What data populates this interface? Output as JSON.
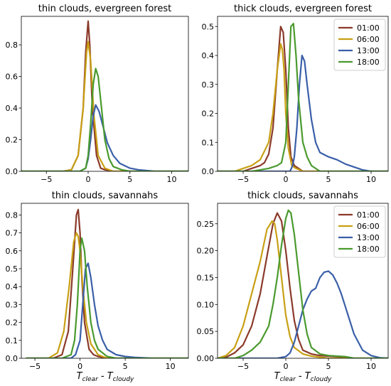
{
  "figure": {
    "x_axis_label": {
      "main": "T",
      "sub1": "clear",
      "mid": " - T",
      "sub2": "cloudy"
    }
  },
  "legend": [
    {
      "label": "01:00",
      "color": "#8b3a2a"
    },
    {
      "label": "06:00",
      "color": "#c8a015"
    },
    {
      "label": "13:00",
      "color": "#3a5fa8"
    },
    {
      "label": "18:00",
      "color": "#4a9a2e"
    }
  ],
  "chart_data": [
    {
      "type": "line",
      "title": "thin clouds, evergreen forest",
      "xlim": [
        -8,
        12
      ],
      "ylim": [
        0,
        0.98
      ],
      "xticks": [
        -5,
        0,
        5,
        10
      ],
      "yticks": [
        0.0,
        0.2,
        0.4,
        0.6,
        0.8
      ],
      "tick_decimals": 1,
      "legend": false,
      "series": [
        {
          "color": "#8b3a2a",
          "x": [
            -8,
            -3,
            -2,
            -1.2,
            -0.6,
            -0.3,
            0,
            0.2,
            0.5,
            1,
            1.5,
            2,
            3,
            12
          ],
          "y": [
            0,
            0,
            0.01,
            0.1,
            0.4,
            0.75,
            0.95,
            0.8,
            0.4,
            0.1,
            0.02,
            0.01,
            0,
            0
          ]
        },
        {
          "color": "#c8a015",
          "x": [
            -8,
            -3,
            -2,
            -1.2,
            -0.6,
            -0.2,
            0,
            0.3,
            0.7,
            1.2,
            2,
            3,
            12
          ],
          "y": [
            0,
            0,
            0.01,
            0.1,
            0.4,
            0.75,
            0.82,
            0.7,
            0.35,
            0.1,
            0.02,
            0,
            0
          ]
        },
        {
          "color": "#3a5fa8",
          "x": [
            -8,
            -1,
            -0.3,
            0,
            0.3,
            0.6,
            0.9,
            1.3,
            1.8,
            2.3,
            3,
            3.8,
            5,
            6,
            8,
            12
          ],
          "y": [
            0,
            0,
            0.02,
            0.08,
            0.2,
            0.35,
            0.42,
            0.38,
            0.28,
            0.18,
            0.1,
            0.05,
            0.02,
            0.01,
            0,
            0
          ]
        },
        {
          "color": "#4a9a2e",
          "x": [
            -8,
            -1,
            -0.3,
            0,
            0.3,
            0.6,
            0.9,
            1.2,
            1.6,
            2,
            2.5,
            3,
            4,
            5,
            12
          ],
          "y": [
            0,
            0,
            0.02,
            0.1,
            0.3,
            0.55,
            0.65,
            0.6,
            0.4,
            0.2,
            0.08,
            0.03,
            0.01,
            0,
            0
          ]
        }
      ]
    },
    {
      "type": "line",
      "title": "thick clouds, evergreen forest",
      "xlim": [
        -8,
        12
      ],
      "ylim": [
        0,
        0.535
      ],
      "xticks": [
        -5,
        0,
        5,
        10
      ],
      "yticks": [
        0.0,
        0.1,
        0.2,
        0.3,
        0.4,
        0.5
      ],
      "tick_decimals": 1,
      "legend": true,
      "series": [
        {
          "name": "01:00",
          "color": "#8b3a2a",
          "x": [
            -8,
            -5,
            -4,
            -3,
            -2.5,
            -2,
            -1.5,
            -1,
            -0.6,
            -0.3,
            0,
            0.3,
            0.6,
            1,
            1.5,
            2,
            3,
            12
          ],
          "y": [
            0,
            0,
            0.01,
            0.02,
            0.03,
            0.06,
            0.15,
            0.35,
            0.5,
            0.48,
            0.35,
            0.15,
            0.05,
            0.02,
            0.01,
            0,
            0,
            0
          ]
        },
        {
          "name": "06:00",
          "color": "#c8a015",
          "x": [
            -8,
            -6,
            -5,
            -4,
            -3,
            -2,
            -1.5,
            -1,
            -0.6,
            -0.4,
            -0.2,
            0,
            0.3,
            0.7,
            1.2,
            2,
            3,
            12
          ],
          "y": [
            0,
            0,
            0.01,
            0.02,
            0.04,
            0.1,
            0.2,
            0.35,
            0.44,
            0.42,
            0.35,
            0.2,
            0.08,
            0.02,
            0.01,
            0,
            0,
            0
          ]
        },
        {
          "name": "13:00",
          "color": "#3a5fa8",
          "x": [
            -8,
            0.5,
            0.8,
            1,
            1.3,
            1.6,
            1.9,
            2.2,
            2.5,
            3,
            3.5,
            4,
            5,
            6,
            7,
            8,
            9,
            10,
            12
          ],
          "y": [
            0,
            0,
            0.02,
            0.05,
            0.15,
            0.3,
            0.4,
            0.38,
            0.3,
            0.18,
            0.1,
            0.065,
            0.05,
            0.04,
            0.025,
            0.015,
            0.005,
            0,
            0
          ]
        },
        {
          "name": "18:00",
          "color": "#4a9a2e",
          "x": [
            -8,
            -4,
            -2,
            -1,
            -0.5,
            0,
            0.3,
            0.6,
            0.9,
            1.2,
            1.5,
            2,
            2.5,
            3,
            4,
            12
          ],
          "y": [
            0,
            0,
            0.01,
            0.02,
            0.03,
            0.1,
            0.3,
            0.5,
            0.51,
            0.4,
            0.25,
            0.1,
            0.05,
            0.02,
            0,
            0
          ]
        }
      ]
    },
    {
      "type": "line",
      "title": "thin clouds, savannahs",
      "xlim": [
        -6.5,
        12
      ],
      "ylim": [
        0,
        0.865
      ],
      "xticks": [
        -5,
        0,
        5,
        10
      ],
      "yticks": [
        0.0,
        0.1,
        0.2,
        0.3,
        0.4,
        0.5,
        0.6,
        0.7,
        0.8
      ],
      "tick_decimals": 1,
      "legend": false,
      "series": [
        {
          "color": "#8b3a2a",
          "x": [
            -6,
            -3,
            -2,
            -1.3,
            -0.8,
            -0.4,
            -0.2,
            0,
            0.2,
            0.5,
            1,
            1.5,
            2,
            3,
            12
          ],
          "y": [
            0,
            0,
            0.02,
            0.15,
            0.5,
            0.8,
            0.83,
            0.7,
            0.45,
            0.2,
            0.05,
            0.02,
            0.01,
            0,
            0
          ]
        },
        {
          "color": "#c8a015",
          "x": [
            -6,
            -3.5,
            -2.5,
            -1.8,
            -1.2,
            -0.7,
            -0.4,
            -0.2,
            0,
            0.3,
            0.7,
            1.2,
            2,
            3,
            12
          ],
          "y": [
            0,
            0,
            0.03,
            0.15,
            0.4,
            0.65,
            0.7,
            0.68,
            0.6,
            0.4,
            0.2,
            0.08,
            0.02,
            0,
            0
          ]
        },
        {
          "color": "#3a5fa8",
          "x": [
            -6,
            -1,
            -0.5,
            0,
            0.3,
            0.6,
            0.9,
            1.2,
            1.6,
            2,
            2.5,
            3,
            4,
            5,
            6,
            8,
            12
          ],
          "y": [
            0,
            0,
            0.02,
            0.1,
            0.3,
            0.5,
            0.53,
            0.45,
            0.3,
            0.18,
            0.1,
            0.05,
            0.02,
            0.01,
            0.005,
            0,
            0
          ]
        },
        {
          "color": "#4a9a2e",
          "x": [
            -6,
            -2,
            -1,
            -0.6,
            -0.3,
            0,
            0.2,
            0.5,
            0.8,
            1.2,
            1.6,
            2,
            3,
            4,
            12
          ],
          "y": [
            0,
            0,
            0.02,
            0.1,
            0.3,
            0.6,
            0.67,
            0.6,
            0.4,
            0.2,
            0.1,
            0.05,
            0.01,
            0,
            0
          ]
        }
      ]
    },
    {
      "type": "line",
      "title": "thick clouds, savannahs",
      "xlim": [
        -8,
        12
      ],
      "ylim": [
        0,
        0.288
      ],
      "xticks": [
        -5,
        0,
        5,
        10
      ],
      "yticks": [
        0.0,
        0.05,
        0.1,
        0.15,
        0.2,
        0.25
      ],
      "tick_decimals": 2,
      "legend": true,
      "series": [
        {
          "name": "01:00",
          "color": "#8b3a2a",
          "x": [
            -8,
            -7,
            -6,
            -5,
            -4,
            -3,
            -2.2,
            -1.5,
            -1,
            -0.5,
            0,
            0.5,
            1,
            1.5,
            2,
            3,
            4,
            5,
            6,
            7,
            8,
            12
          ],
          "y": [
            0,
            0.002,
            0.01,
            0.025,
            0.06,
            0.12,
            0.19,
            0.25,
            0.27,
            0.255,
            0.2,
            0.13,
            0.07,
            0.035,
            0.015,
            0.008,
            0.005,
            0.004,
            0.003,
            0.002,
            0,
            0
          ]
        },
        {
          "name": "06:00",
          "color": "#c8a015",
          "x": [
            -8,
            -7,
            -6,
            -5,
            -4,
            -3,
            -2.2,
            -1.6,
            -1.3,
            -1,
            -0.5,
            0,
            0.5,
            1,
            2,
            3,
            4,
            5,
            12
          ],
          "y": [
            0,
            0.005,
            0.02,
            0.06,
            0.12,
            0.18,
            0.24,
            0.255,
            0.25,
            0.22,
            0.15,
            0.08,
            0.04,
            0.02,
            0.008,
            0.004,
            0.002,
            0,
            0
          ]
        },
        {
          "name": "13:00",
          "color": "#3a5fa8",
          "x": [
            -8,
            -1,
            0,
            0.5,
            1,
            1.5,
            2,
            2.5,
            3,
            3.5,
            4,
            4.5,
            5,
            5.5,
            6,
            6.5,
            7,
            7.5,
            8,
            9,
            10,
            11,
            12
          ],
          "y": [
            0,
            0,
            0.003,
            0.01,
            0.03,
            0.06,
            0.09,
            0.11,
            0.125,
            0.13,
            0.15,
            0.16,
            0.162,
            0.155,
            0.14,
            0.12,
            0.095,
            0.07,
            0.045,
            0.015,
            0.005,
            0.001,
            0
          ]
        },
        {
          "name": "18:00",
          "color": "#4a9a2e",
          "x": [
            -8,
            -6,
            -5,
            -4,
            -3,
            -2,
            -1.5,
            -1,
            -0.5,
            0,
            0.3,
            0.6,
            1,
            1.5,
            2,
            2.5,
            3,
            4,
            5,
            6,
            7,
            8,
            12
          ],
          "y": [
            0,
            0,
            0.005,
            0.015,
            0.03,
            0.06,
            0.1,
            0.15,
            0.21,
            0.26,
            0.275,
            0.27,
            0.23,
            0.16,
            0.09,
            0.045,
            0.02,
            0.008,
            0.005,
            0.004,
            0.003,
            0,
            0
          ]
        }
      ]
    }
  ]
}
